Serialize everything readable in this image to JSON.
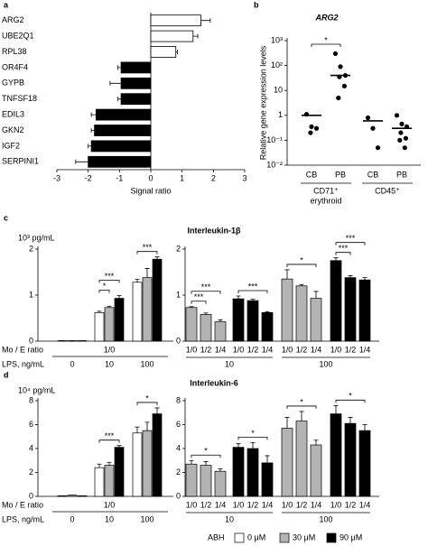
{
  "chart_data": [
    {
      "type": "hbar",
      "panel": "a",
      "categories": [
        "ARG2",
        "UBE2Q1",
        "RPL38",
        "OR4F4",
        "GYPB",
        "TNFSF18",
        "EDIL3",
        "GKN2",
        "IGF2",
        "SERPINI1"
      ],
      "values": [
        1.6,
        1.35,
        0.8,
        -0.95,
        -0.95,
        -0.95,
        -1.75,
        -1.8,
        -1.9,
        -2.0
      ],
      "errors": [
        0.3,
        0.15,
        0.05,
        0.1,
        0.35,
        0.1,
        0.15,
        0.1,
        0.1,
        0.4
      ],
      "positive_color": "#ffffff",
      "negative_color": "#000000",
      "xlim": [
        -3,
        3
      ],
      "xticks": [
        -3,
        -2,
        -1,
        0,
        1,
        2,
        3
      ],
      "xlabel": "Signal ratio"
    },
    {
      "type": "dot",
      "panel": "b",
      "title": "ARG2",
      "ylabel": "Relative gene expression levels",
      "yscale": "log",
      "ylim": [
        0.01,
        1000
      ],
      "yticks": [
        {
          "value": 0.01,
          "label": "10⁻²"
        },
        {
          "value": 0.1,
          "label": "10⁻¹"
        },
        1,
        10,
        {
          "value": 100,
          "label": "10²"
        },
        {
          "value": 1000,
          "label": "10³"
        }
      ],
      "categories": [
        "CB",
        "PB",
        "CB",
        "PB"
      ],
      "groups": [
        [
          "CD71⁺",
          "erythroid"
        ],
        [
          "CD45⁺"
        ]
      ],
      "points": [
        [
          1.1,
          0.35,
          0.3,
          0.2
        ],
        [
          300,
          90,
          40,
          35,
          15,
          5
        ],
        [
          0.8,
          0.3,
          0.05
        ],
        [
          1.0,
          0.45,
          0.35,
          0.2,
          0.12,
          0.1,
          0.05
        ]
      ],
      "medians": [
        1.0,
        40,
        0.6,
        0.3
      ],
      "color": "#000000",
      "annotations": [
        "*"
      ]
    },
    {
      "type": "grouped_bar",
      "panel": "c",
      "title": "Interleukin-1β",
      "unit": "10³ pg/mL",
      "ylim": [
        0,
        2
      ],
      "yticks": [
        0,
        1,
        2
      ],
      "row_labels": [
        "Mo / E ratio",
        "LPS, ng/mL"
      ],
      "left": {
        "ratio": "1/0",
        "lps": [
          "0",
          "10",
          "100"
        ],
        "values": [
          [
            0.01,
            0.01,
            0.01
          ],
          [
            0.62,
            0.73,
            0.93
          ],
          [
            1.28,
            1.38,
            1.78
          ]
        ],
        "errors": [
          [
            0,
            0,
            0
          ],
          [
            0.03,
            0.03,
            0.06
          ],
          [
            0.06,
            0.2,
            0.05
          ]
        ]
      },
      "right": {
        "lps": [
          "10",
          "100"
        ],
        "clusters": [
          {
            "color": "#b3b3b3",
            "ratios": [
              "1/0",
              "1/2",
              "1/4"
            ],
            "values": [
              0.73,
              0.58,
              0.42
            ],
            "errors": [
              0.02,
              0.03,
              0.04
            ]
          },
          {
            "color": "#000000",
            "ratios": [
              "1/0",
              "1/2",
              "1/4"
            ],
            "values": [
              0.92,
              0.88,
              0.62
            ],
            "errors": [
              0.06,
              0.03,
              0.02
            ]
          },
          {
            "color": "#b3b3b3",
            "ratios": [
              "1/0",
              "1/2",
              "1/4"
            ],
            "values": [
              1.35,
              1.2,
              0.93
            ],
            "errors": [
              0.2,
              0.03,
              0.15
            ]
          },
          {
            "color": "#000000",
            "ratios": [
              "1/0",
              "1/2",
              "1/4"
            ],
            "values": [
              1.75,
              1.38,
              1.33
            ],
            "errors": [
              0.06,
              0.04,
              0.05
            ]
          }
        ]
      },
      "annotations": {
        "left": [
          "*",
          "***",
          "***"
        ],
        "right": [
          "***",
          "***",
          "***",
          "*",
          "***",
          "***"
        ]
      }
    },
    {
      "type": "grouped_bar",
      "panel": "d",
      "title": "Interleukin-6",
      "unit": "10⁴ pg/mL",
      "ylim": [
        0,
        8
      ],
      "yticks": [
        0,
        2,
        4,
        6,
        8
      ],
      "row_labels": [
        "Mo / E ratio",
        "LPS, ng/mL"
      ],
      "left": {
        "ratio": "1/0",
        "lps": [
          "0",
          "10",
          "100"
        ],
        "values": [
          [
            0.05,
            0.1,
            0.05
          ],
          [
            2.4,
            2.6,
            4.1
          ],
          [
            5.3,
            5.5,
            6.9
          ]
        ],
        "errors": [
          [
            0,
            0,
            0
          ],
          [
            0.3,
            0.25,
            0.15
          ],
          [
            0.5,
            0.7,
            0.5
          ]
        ]
      },
      "right": {
        "lps": [
          "10",
          "100"
        ],
        "clusters": [
          {
            "color": "#b3b3b3",
            "ratios": [
              "1/0",
              "1/2",
              "1/4"
            ],
            "values": [
              2.7,
              2.6,
              2.1
            ],
            "errors": [
              0.3,
              0.3,
              0.2
            ]
          },
          {
            "color": "#000000",
            "ratios": [
              "1/0",
              "1/2",
              "1/4"
            ],
            "values": [
              4.1,
              4.0,
              2.8
            ],
            "errors": [
              0.3,
              0.5,
              0.6
            ]
          },
          {
            "color": "#b3b3b3",
            "ratios": [
              "1/0",
              "1/2",
              "1/4"
            ],
            "values": [
              5.7,
              6.3,
              4.3
            ],
            "errors": [
              0.9,
              0.8,
              0.4
            ]
          },
          {
            "color": "#000000",
            "ratios": [
              "1/0",
              "1/2",
              "1/4"
            ],
            "values": [
              6.9,
              6.1,
              5.5
            ],
            "errors": [
              0.7,
              0.5,
              0.5
            ]
          }
        ]
      },
      "annotations": {
        "left": [
          "***",
          "*"
        ],
        "right": [
          "*",
          "*",
          "*",
          "*"
        ]
      }
    }
  ],
  "legend": {
    "title": "ABH",
    "entries": [
      {
        "name": "0 μM",
        "color": "#ffffff"
      },
      {
        "name": "30 μM",
        "color": "#b3b3b3"
      },
      {
        "name": "90 μM",
        "color": "#000000"
      }
    ]
  }
}
